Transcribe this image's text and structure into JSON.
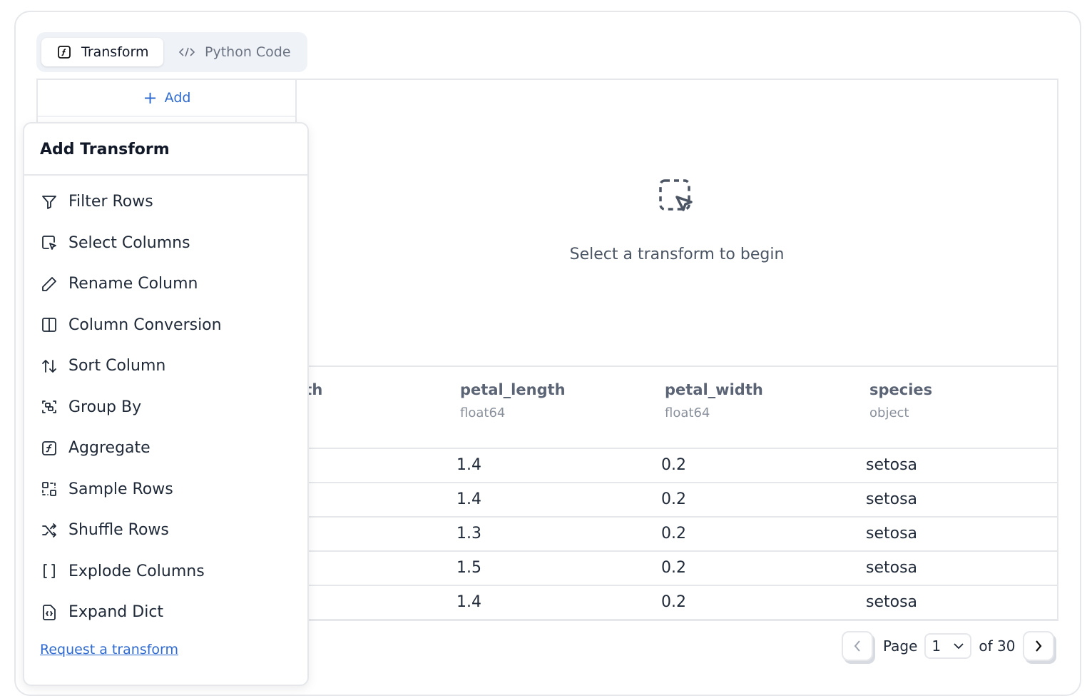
{
  "tabs": [
    {
      "label": "Transform",
      "icon": "function-icon"
    },
    {
      "label": "Python Code",
      "icon": "code-icon"
    }
  ],
  "add_label": "Add",
  "empty_state": {
    "text": "Select a transform to begin",
    "icon": "dashed-cursor-select-icon"
  },
  "table": {
    "columns": [
      {
        "name": "sepal_width",
        "type": ""
      },
      {
        "name": "petal_length",
        "type": "float64"
      },
      {
        "name": "petal_width",
        "type": "float64"
      },
      {
        "name": "species",
        "type": "object"
      }
    ],
    "rows": [
      [
        "1.4",
        "0.2",
        "setosa"
      ],
      [
        "1.4",
        "0.2",
        "setosa"
      ],
      [
        "1.3",
        "0.2",
        "setosa"
      ],
      [
        "1.5",
        "0.2",
        "setosa"
      ],
      [
        "1.4",
        "0.2",
        "setosa"
      ]
    ]
  },
  "pager": {
    "page_label": "Page",
    "page": "1",
    "of_label": "of 30"
  },
  "popup": {
    "title": "Add Transform",
    "items": [
      {
        "label": "Filter Rows",
        "icon": "filter-icon"
      },
      {
        "label": "Select Columns",
        "icon": "select-columns-icon"
      },
      {
        "label": "Rename Column",
        "icon": "pencil-icon"
      },
      {
        "label": "Column Conversion",
        "icon": "columns-icon"
      },
      {
        "label": "Sort Column",
        "icon": "sort-icon"
      },
      {
        "label": "Group By",
        "icon": "group-icon"
      },
      {
        "label": "Aggregate",
        "icon": "function-icon"
      },
      {
        "label": "Sample Rows",
        "icon": "sample-icon"
      },
      {
        "label": "Shuffle Rows",
        "icon": "shuffle-icon"
      },
      {
        "label": "Explode Columns",
        "icon": "brackets-icon"
      },
      {
        "label": "Expand Dict",
        "icon": "file-braces-icon"
      }
    ],
    "request_link": "Request a transform"
  },
  "colors": {
    "accent": "#2f6ad0",
    "border": "#e5e7eb"
  }
}
